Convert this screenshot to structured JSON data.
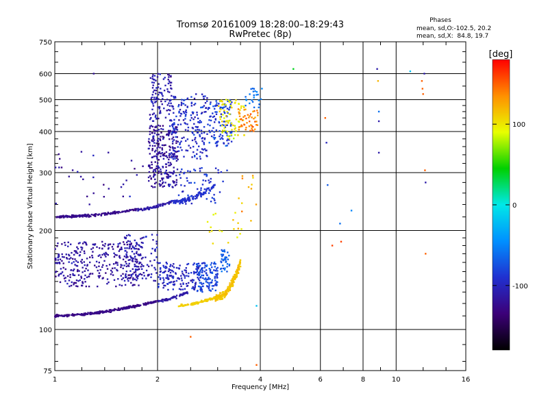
{
  "chart_data": {
    "type": "scatter",
    "title": "Tromsø 20161009 18:28:00–18:29:43",
    "subtitle": "RwPretec (8p)",
    "stats": {
      "heading": "Phases",
      "line_o": "mean, sd,O:-102.5, 20.2",
      "line_x": "mean, sd,X:  84.8, 19.7"
    },
    "xlabel": "Frequency [MHz]",
    "ylabel": "Stationary phase Virtual Height [km]",
    "xscale": "log2",
    "yscale": "log",
    "xlim": [
      1,
      16
    ],
    "ylim": [
      75,
      750
    ],
    "xticks": [
      1,
      2,
      4,
      6,
      8,
      10,
      16
    ],
    "yticks": [
      75,
      100,
      200,
      300,
      400,
      500,
      600,
      750
    ],
    "grid": true,
    "colorbar": {
      "label": "[deg]",
      "min": -180,
      "max": 180,
      "ticks": [
        100,
        0,
        -100
      ],
      "colormap": [
        "#000000",
        "#3c0078",
        "#2030d0",
        "#0090ff",
        "#00e8e8",
        "#00d000",
        "#e8ff00",
        "#ff9000",
        "#ff0000"
      ]
    },
    "series": [
      {
        "type": "trace",
        "x0": 1.0,
        "x1": 2.0,
        "y0": 110,
        "y1": 122,
        "curve": 0.35,
        "phase": -128,
        "jitter": 0.012,
        "count": 260
      },
      {
        "type": "trace",
        "x0": 2.0,
        "x1": 2.45,
        "y0": 122,
        "y1": 130,
        "curve": 0.3,
        "phase": -112,
        "jitter": 0.015,
        "count": 60
      },
      {
        "type": "trace",
        "x0": 2.3,
        "x1": 2.95,
        "y0": 118,
        "y1": 125,
        "curve": 0.3,
        "phase": 110,
        "jitter": 0.012,
        "count": 90
      },
      {
        "type": "trace",
        "x0": 2.95,
        "x1": 3.5,
        "y0": 125,
        "y1": 160,
        "curve": 0.6,
        "phase": 115,
        "jitter": 0.04,
        "count": 220
      },
      {
        "type": "cloud",
        "x0": 1.0,
        "x1": 1.8,
        "y0": 135,
        "y1": 185,
        "phase": -115,
        "spread": 25,
        "count": 330
      },
      {
        "type": "cloud",
        "x0": 1.6,
        "x1": 2.0,
        "y0": 140,
        "y1": 195,
        "phase": -105,
        "spread": 25,
        "count": 110
      },
      {
        "type": "cloud",
        "x0": 2.0,
        "x1": 2.7,
        "y0": 132,
        "y1": 160,
        "phase": -98,
        "spread": 25,
        "count": 150
      },
      {
        "type": "cloud",
        "x0": 2.6,
        "x1": 3.0,
        "y0": 130,
        "y1": 160,
        "phase": -80,
        "spread": 25,
        "count": 120
      },
      {
        "type": "cloud",
        "x0": 3.05,
        "x1": 3.25,
        "y0": 150,
        "y1": 175,
        "phase": -70,
        "spread": 25,
        "count": 40
      },
      {
        "type": "trace",
        "x0": 1.0,
        "x1": 1.75,
        "y0": 220,
        "y1": 232,
        "curve": 0.4,
        "phase": -125,
        "jitter": 0.012,
        "count": 170
      },
      {
        "type": "trace",
        "x0": 1.75,
        "x1": 2.2,
        "y0": 232,
        "y1": 245,
        "curve": 0.4,
        "phase": -112,
        "jitter": 0.015,
        "count": 70
      },
      {
        "type": "trace",
        "x0": 2.2,
        "x1": 2.95,
        "y0": 245,
        "y1": 275,
        "curve": 0.5,
        "phase": -92,
        "jitter": 0.025,
        "count": 110
      },
      {
        "type": "cloud",
        "x0": 1.88,
        "x1": 2.3,
        "y0": 270,
        "y1": 420,
        "phase": -115,
        "spread": 30,
        "count": 260
      },
      {
        "type": "cloud",
        "x0": 1.9,
        "x1": 2.2,
        "y0": 430,
        "y1": 600,
        "phase": -108,
        "spread": 25,
        "count": 110
      },
      {
        "type": "cloud",
        "x0": 2.2,
        "x1": 2.8,
        "y0": 330,
        "y1": 520,
        "phase": -95,
        "spread": 30,
        "count": 180
      },
      {
        "type": "cloud",
        "x0": 2.8,
        "x1": 3.3,
        "y0": 360,
        "y1": 500,
        "phase": -82,
        "spread": 30,
        "count": 120
      },
      {
        "type": "cloud",
        "x0": 3.0,
        "x1": 3.6,
        "y0": 380,
        "y1": 500,
        "phase": 100,
        "spread": 30,
        "count": 70
      },
      {
        "type": "cloud",
        "x0": 3.4,
        "x1": 3.95,
        "y0": 400,
        "y1": 470,
        "phase": 140,
        "spread": 25,
        "count": 50
      },
      {
        "type": "cloud",
        "x0": 3.6,
        "x1": 4.05,
        "y0": 470,
        "y1": 560,
        "phase": -55,
        "spread": 25,
        "count": 25
      },
      {
        "type": "cloud",
        "x0": 2.3,
        "x1": 3.2,
        "y0": 240,
        "y1": 310,
        "phase": -90,
        "spread": 25,
        "count": 60
      },
      {
        "type": "cloud",
        "x0": 2.8,
        "x1": 3.5,
        "y0": 180,
        "y1": 230,
        "phase": 100,
        "spread": 20,
        "count": 15
      },
      {
        "type": "cloud",
        "x0": 1.0,
        "x1": 1.9,
        "y0": 240,
        "y1": 350,
        "phase": -115,
        "spread": 25,
        "count": 30
      },
      {
        "type": "cloud",
        "x0": 3.3,
        "x1": 4.0,
        "y0": 200,
        "y1": 330,
        "phase": 120,
        "spread": 40,
        "count": 15
      },
      {
        "type": "points",
        "x": [
          5.0,
          6.2,
          6.25,
          6.3,
          6.5,
          6.85,
          6.9,
          7.4,
          8.8,
          8.85,
          8.9,
          8.9,
          8.9,
          11.0,
          11.9,
          11.95,
          12.0,
          12.1,
          12.15,
          12.2,
          12.2,
          1.3,
          2.5,
          3.9,
          3.9
        ],
        "y": [
          620,
          440,
          370,
          275,
          180,
          210,
          185,
          230,
          620,
          570,
          460,
          430,
          345,
          610,
          570,
          540,
          520,
          600,
          305,
          280,
          170,
          600,
          95,
          78,
          118
        ],
        "phase": [
          40,
          150,
          -100,
          -70,
          160,
          -60,
          160,
          -50,
          -110,
          120,
          -60,
          -110,
          -110,
          -20,
          150,
          150,
          150,
          -110,
          150,
          -110,
          150,
          -120,
          150,
          150,
          -20
        ]
      }
    ]
  }
}
